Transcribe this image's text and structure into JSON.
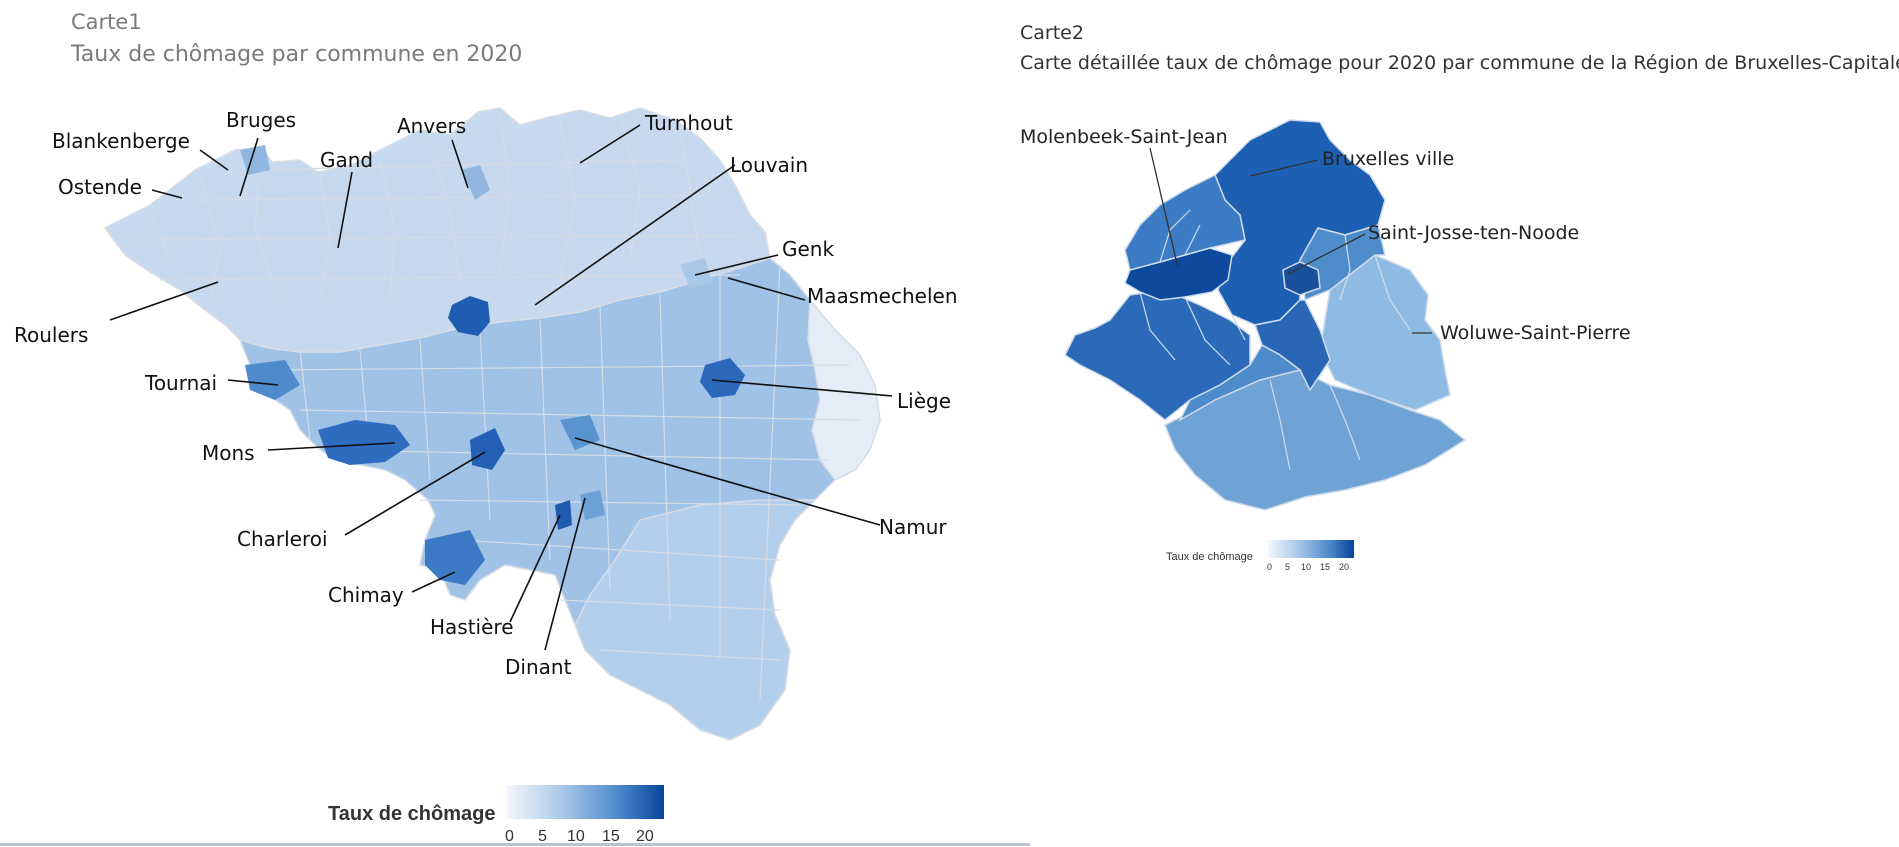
{
  "carte1": {
    "label": "Carte1",
    "title": "Taux de chômage par commune en 2020",
    "places": [
      "Blankenberge",
      "Bruges",
      "Gand",
      "Anvers",
      "Turnhout",
      "Louvain",
      "Ostende",
      "Genk",
      "Maasmechelen",
      "Roulers",
      "Tournai",
      "Liège",
      "Mons",
      "Charleroi",
      "Namur",
      "Chimay",
      "Hastière",
      "Dinant"
    ],
    "legend": {
      "title": "Taux de chômage",
      "ticks": [
        "0",
        "5",
        "10",
        "15",
        "20"
      ],
      "color_low": "#f1f5fb",
      "color_high": "#08449a"
    }
  },
  "carte2": {
    "label": "Carte2",
    "title": "Carte détaillée taux de chômage pour 2020 par commune de la Région de Bruxelles-Capitale",
    "places": [
      "Molenbeek-Saint-Jean",
      "Bruxelles ville",
      "Saint-Josse-ten-Noode",
      "Woluwe-Saint-Pierre"
    ],
    "legend": {
      "title": "Taux de chômage",
      "ticks": [
        "0",
        "5",
        "10",
        "15",
        "20"
      ]
    }
  },
  "colors": {
    "very_light": "#dbe6f4",
    "light": "#c4d8ee",
    "medium": "#8fb7e0",
    "strong": "#5b95d0",
    "dark": "#2f6fbd",
    "very_dark": "#0d4fa0"
  }
}
